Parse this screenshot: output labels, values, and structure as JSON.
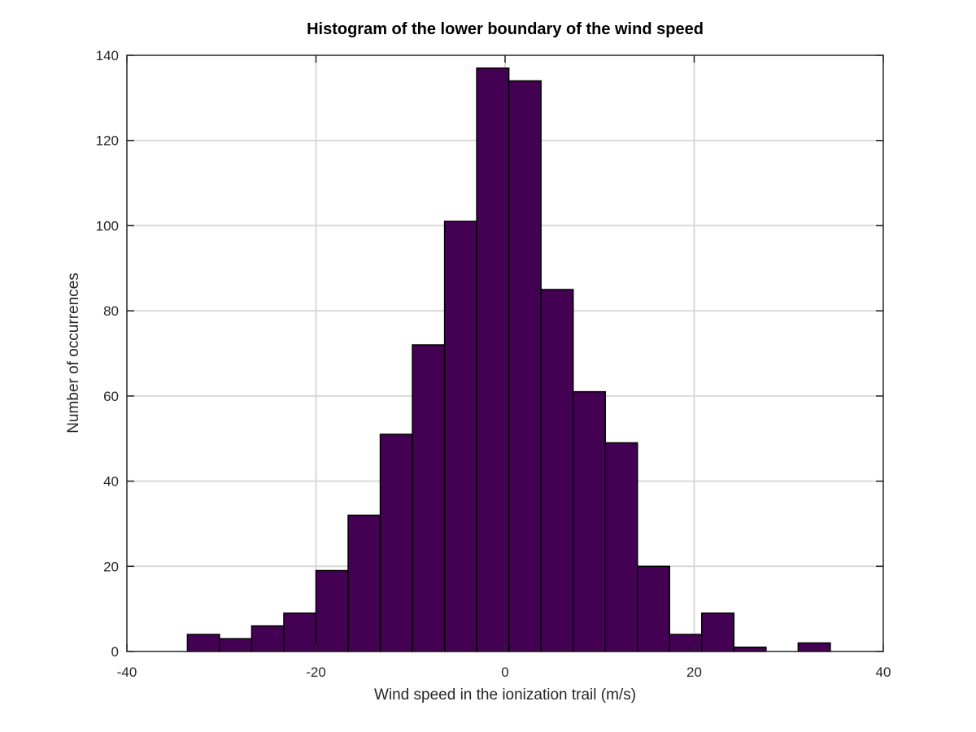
{
  "chart_data": {
    "type": "bar",
    "title": "Histogram of the lower boundary of the wind speed",
    "xlabel": "Wind speed in the ionization trail (m/s)",
    "ylabel": "Number of occurrences",
    "xlim": [
      -40,
      40
    ],
    "ylim": [
      0,
      140
    ],
    "xticks": [
      "-40",
      "-20",
      "0",
      "20",
      "40"
    ],
    "yticks": [
      "0",
      "20",
      "40",
      "60",
      "80",
      "100",
      "120",
      "140"
    ],
    "xtick_values": [
      -40,
      -20,
      0,
      20,
      40
    ],
    "ytick_values": [
      0,
      20,
      40,
      60,
      80,
      100,
      120,
      140
    ],
    "grid": true,
    "bar_color": "#440154",
    "bin_edges": [
      -33.6,
      -30.2,
      -26.8,
      -23.4,
      -20.0,
      -16.6,
      -13.2,
      -9.8,
      -6.4,
      -3.0,
      0.4,
      3.8,
      7.2,
      10.6,
      14.0,
      17.4,
      20.8,
      24.2,
      27.6,
      31.0,
      34.4
    ],
    "values": [
      4,
      3,
      6,
      9,
      19,
      32,
      51,
      72,
      101,
      137,
      134,
      85,
      61,
      49,
      20,
      4,
      9,
      1,
      0,
      2
    ]
  }
}
